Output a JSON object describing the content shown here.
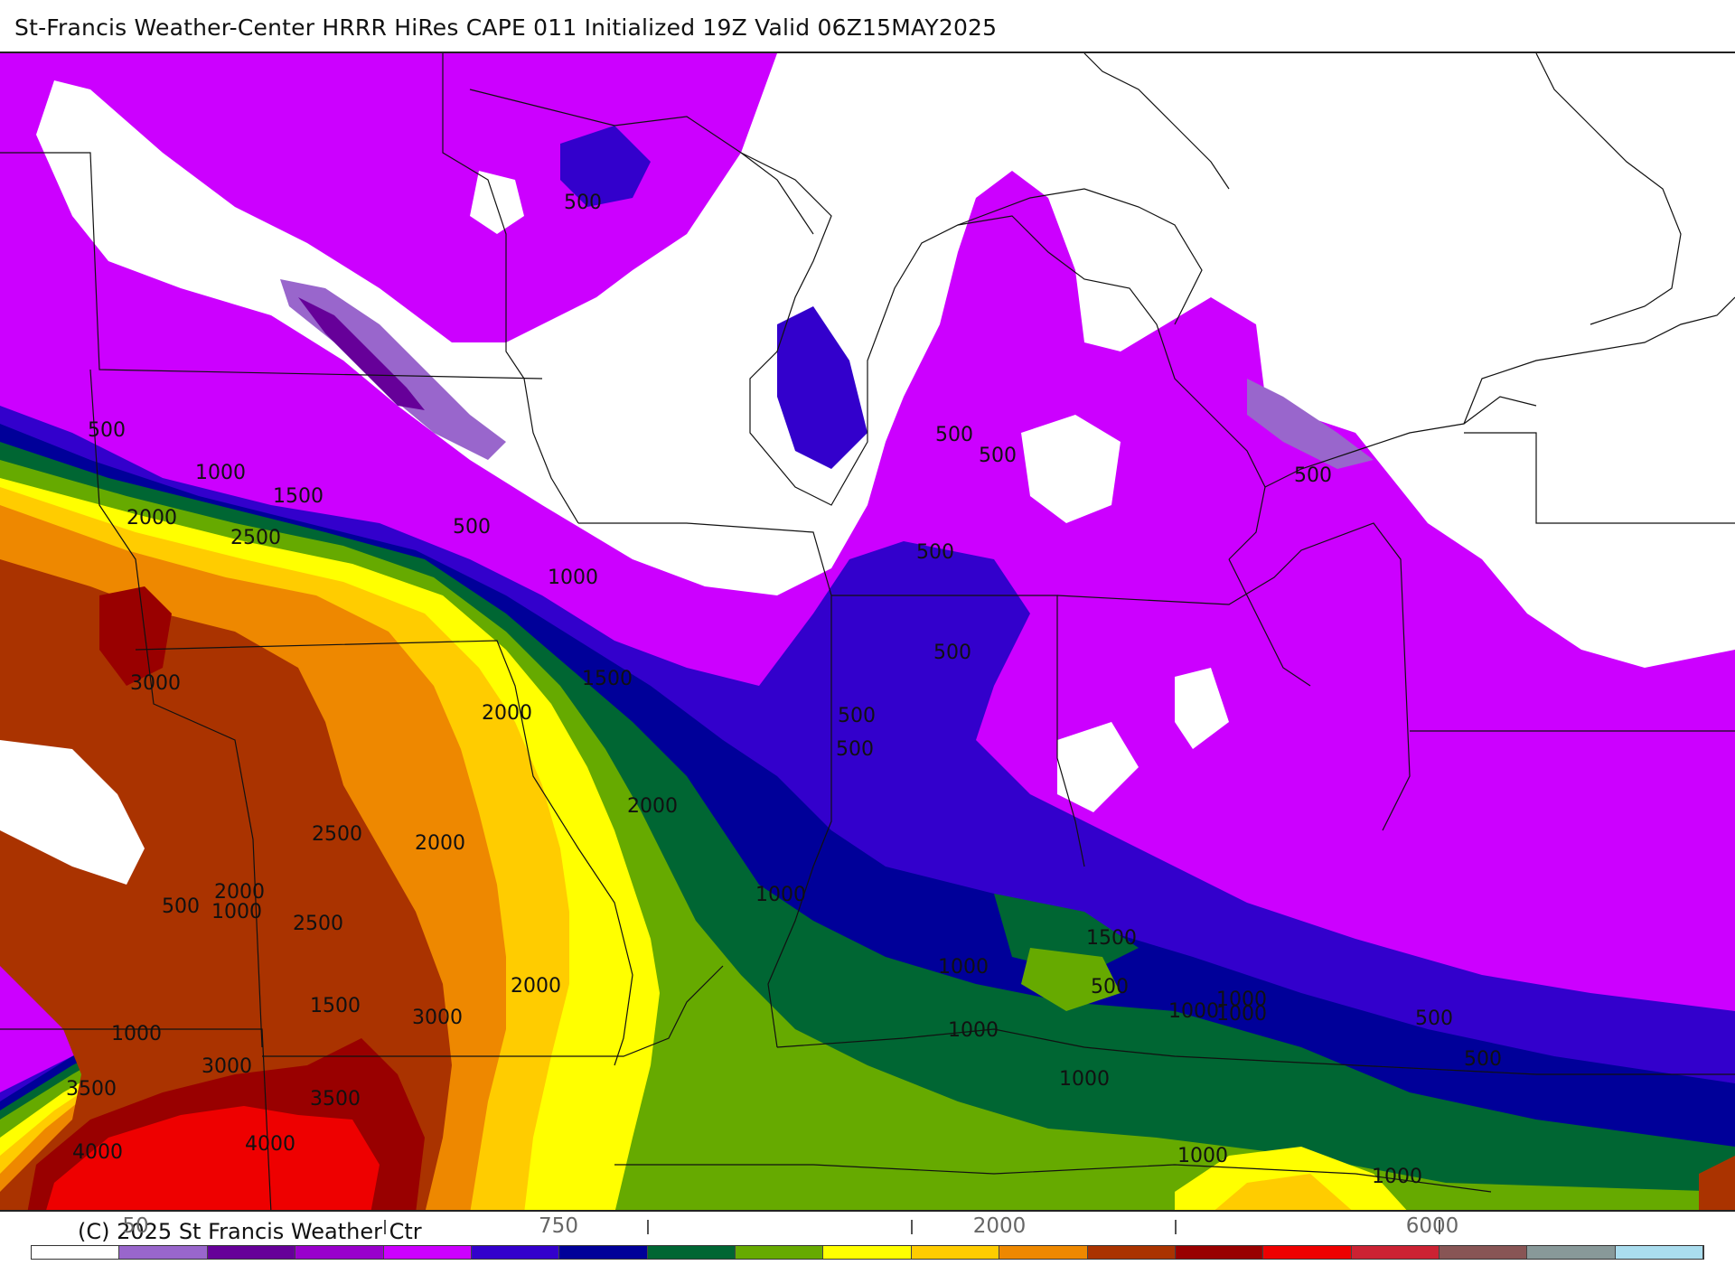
{
  "title": "St-Francis Weather-Center HRRR HiRes CAPE  011 Initialized  19Z Valid 06Z15MAY2025",
  "copyright": "(C) 2025 St Francis Weather Ctr",
  "colorbar": {
    "colors": [
      "#ffffff",
      "#9966cc",
      "#660099",
      "#9900cc",
      "#cc00ff",
      "#3300cc",
      "#000099",
      "#006633",
      "#66aa00",
      "#ffff00",
      "#ffcc00",
      "#ee8800",
      "#aa3300",
      "#990000",
      "#ee0000",
      "#cc2233",
      "#885555",
      "#889999",
      "#aaddee"
    ],
    "labels": [
      "50",
      "750",
      "2000",
      "6000"
    ]
  },
  "contour_labels": [
    "500",
    "500",
    "1000",
    "1500",
    "2000",
    "2500",
    "500",
    "1000",
    "3000",
    "1500",
    "2000",
    "2000",
    "2500",
    "2000",
    "2000",
    "500",
    "1000",
    "2500",
    "1500",
    "3000",
    "2000",
    "1000",
    "3000",
    "3500",
    "3500",
    "4000",
    "4000",
    "500",
    "500",
    "500",
    "500",
    "500",
    "500",
    "1000",
    "1500",
    "1000",
    "500",
    "1000",
    "1000",
    "1000",
    "500",
    "1000",
    "500",
    "500",
    "1000",
    "1000",
    "1000"
  ]
}
